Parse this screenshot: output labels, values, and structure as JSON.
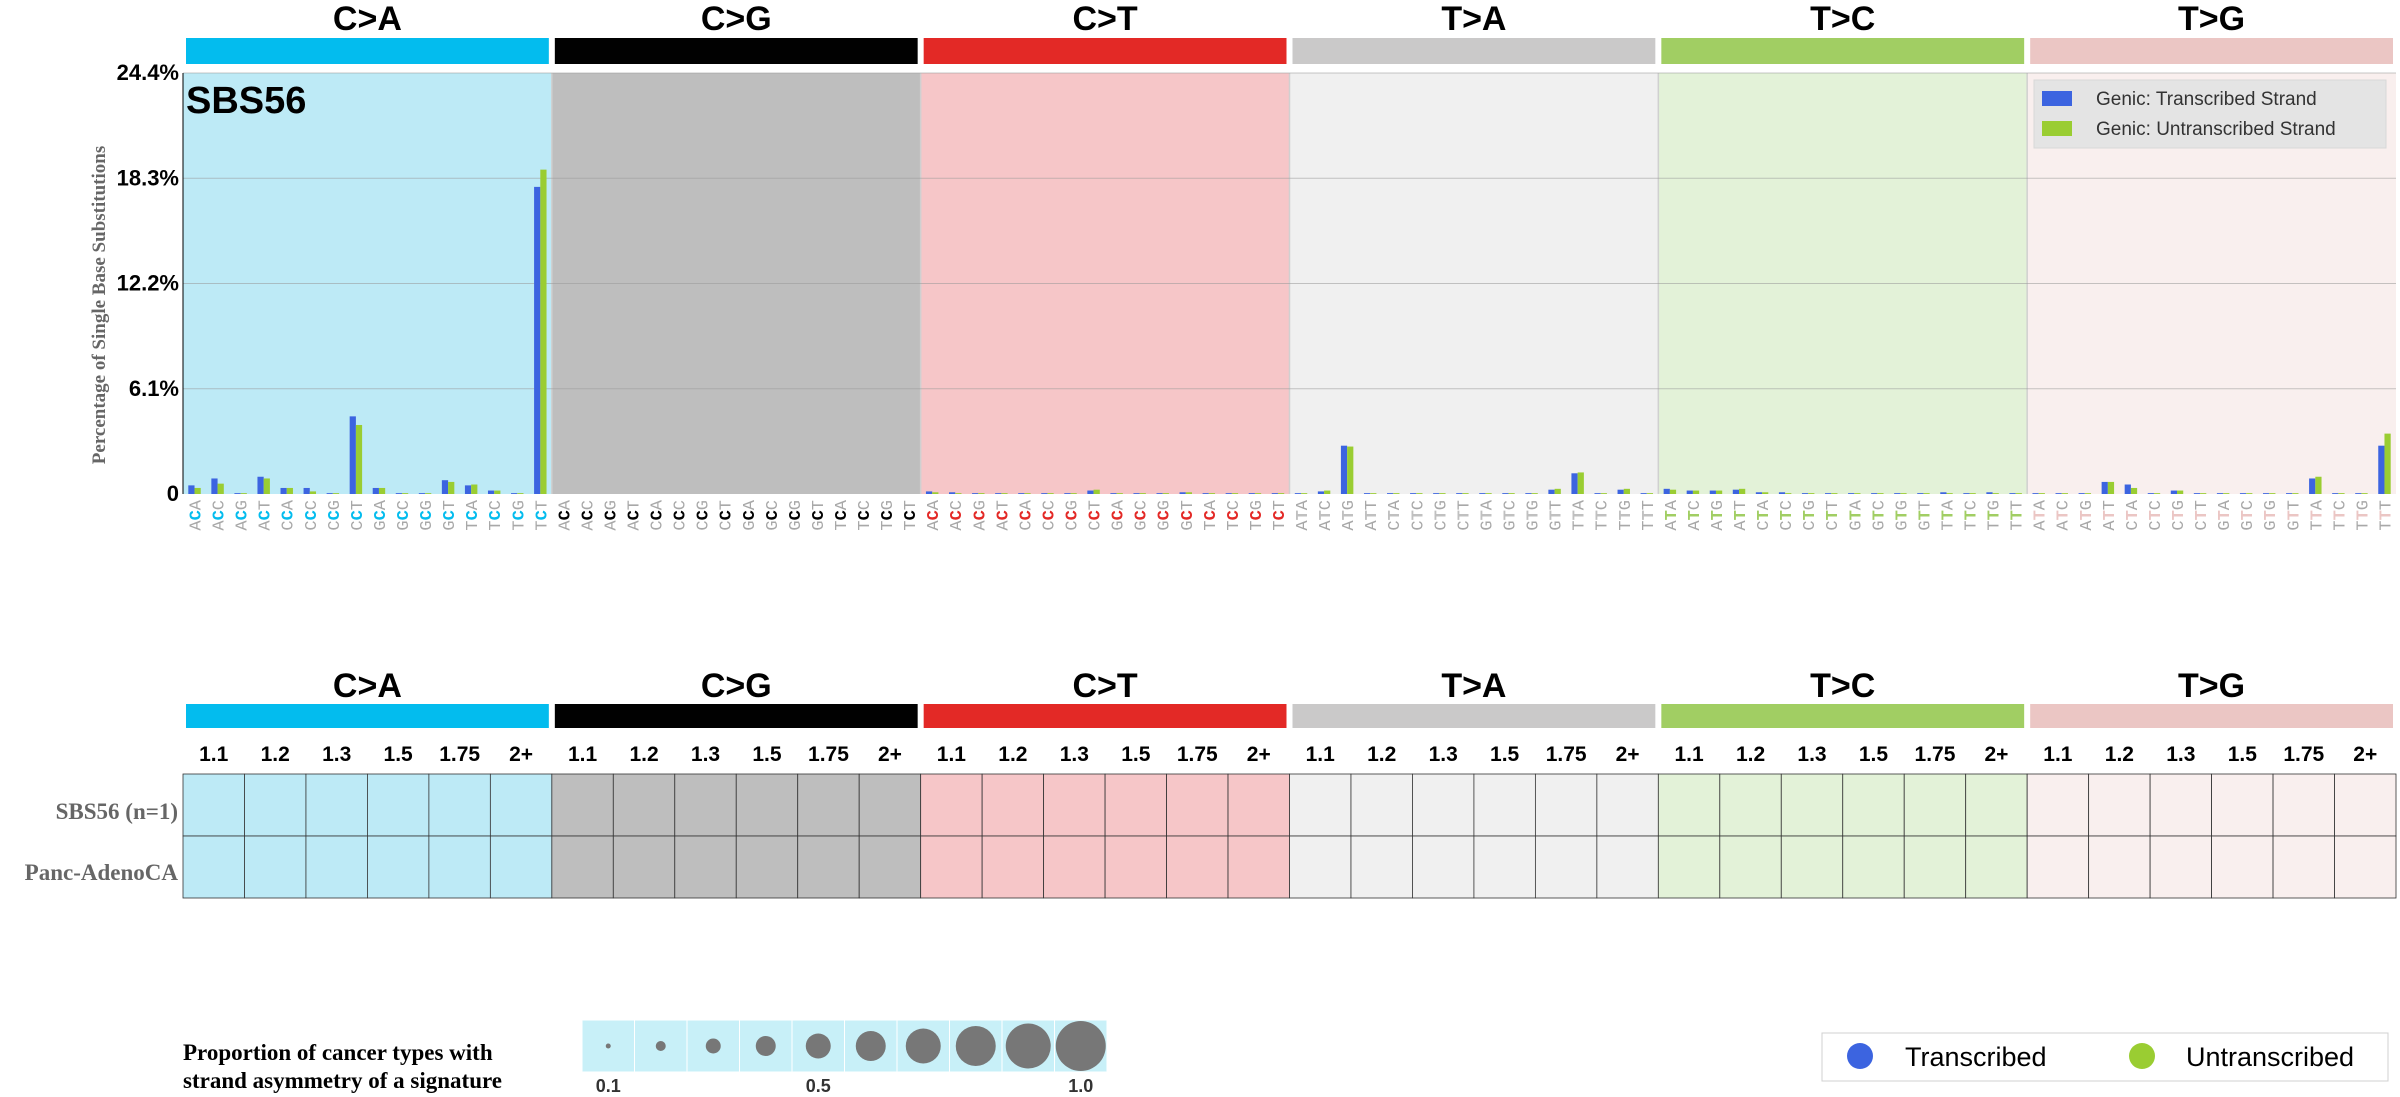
{
  "chart_data": [
    {
      "type": "bar",
      "title": "SBS56",
      "ylabel": "Percentage of Single Base Substitutions",
      "ylim": [
        0,
        24.4
      ],
      "yticks": [
        "0",
        "6.1%",
        "12.2%",
        "18.3%",
        "24.4%"
      ],
      "ytick_values": [
        0,
        6.1,
        12.2,
        18.3,
        24.4
      ],
      "grid": true,
      "legend_position": "top-right",
      "groups": [
        {
          "label": "C>A",
          "color": "#03bcee",
          "bg": "#bdeaf6",
          "mid": "C"
        },
        {
          "label": "C>G",
          "color": "#010101",
          "bg": "#bebebe",
          "mid": "C"
        },
        {
          "label": "C>T",
          "color": "#e32926",
          "bg": "#f6c6c8",
          "mid": "C"
        },
        {
          "label": "T>A",
          "color": "#cac9c9",
          "bg": "#f0f0f0",
          "mid": "T"
        },
        {
          "label": "T>C",
          "color": "#a1ce63",
          "bg": "#e3f2d8",
          "mid": "T"
        },
        {
          "label": "T>G",
          "color": "#ebc6c4",
          "bg": "#f9efee",
          "mid": "T"
        }
      ],
      "mid_colors": {
        "C>A": "#03bcee",
        "C>G": "#010101",
        "C>T": "#e32926",
        "T>A": "#c0c0c0",
        "T>C": "#a1ce63",
        "T>G": "#ebc6c4"
      },
      "categories": [
        "ACA",
        "ACC",
        "ACG",
        "ACT",
        "CCA",
        "CCC",
        "CCG",
        "CCT",
        "GCA",
        "GCC",
        "GCG",
        "GCT",
        "TCA",
        "TCC",
        "TCG",
        "TCT",
        "ACA",
        "ACC",
        "ACG",
        "ACT",
        "CCA",
        "CCC",
        "CCG",
        "CCT",
        "GCA",
        "GCC",
        "GCG",
        "GCT",
        "TCA",
        "TCC",
        "TCG",
        "TCT",
        "ACA",
        "ACC",
        "ACG",
        "ACT",
        "CCA",
        "CCC",
        "CCG",
        "CCT",
        "GCA",
        "GCC",
        "GCG",
        "GCT",
        "TCA",
        "TCC",
        "TCG",
        "TCT",
        "ATA",
        "ATC",
        "ATG",
        "ATT",
        "CTA",
        "CTC",
        "CTG",
        "CTT",
        "GTA",
        "GTC",
        "GTG",
        "GTT",
        "TTA",
        "TTC",
        "TTG",
        "TTT",
        "ATA",
        "ATC",
        "ATG",
        "ATT",
        "CTA",
        "CTC",
        "CTG",
        "CTT",
        "GTA",
        "GTC",
        "GTG",
        "GTT",
        "TTA",
        "TTC",
        "TTG",
        "TTT",
        "ATA",
        "ATC",
        "ATG",
        "ATT",
        "CTA",
        "CTC",
        "CTG",
        "CTT",
        "GTA",
        "GTC",
        "GTG",
        "GTT",
        "TTA",
        "TTC",
        "TTG",
        "TTT"
      ],
      "series": [
        {
          "name": "Genic: Transcribed Strand",
          "color": "#3c64e0",
          "values": [
            0.5,
            0.9,
            0.05,
            1.0,
            0.35,
            0.35,
            0.05,
            4.5,
            0.35,
            0.05,
            0.05,
            0.8,
            0.5,
            0.2,
            0.05,
            17.8,
            0,
            0,
            0,
            0,
            0,
            0,
            0,
            0,
            0,
            0,
            0,
            0,
            0,
            0,
            0,
            0,
            0.15,
            0.1,
            0.05,
            0.05,
            0.05,
            0.05,
            0.05,
            0.2,
            0.05,
            0.05,
            0.05,
            0.1,
            0.05,
            0.05,
            0.05,
            0.05,
            0.05,
            0.15,
            2.8,
            0.05,
            0.05,
            0.05,
            0.05,
            0.05,
            0.05,
            0.05,
            0.05,
            0.25,
            1.2,
            0.05,
            0.25,
            0.05,
            0.3,
            0.2,
            0.2,
            0.25,
            0.1,
            0.1,
            0.05,
            0.05,
            0.05,
            0.05,
            0.05,
            0.05,
            0.1,
            0.05,
            0.1,
            0.05,
            0.05,
            0.05,
            0.05,
            0.7,
            0.55,
            0.05,
            0.2,
            0.05,
            0.05,
            0.05,
            0.05,
            0.05,
            0.9,
            0.05,
            0.05,
            2.8
          ]
        },
        {
          "name": "Genic: Untranscribed Strand",
          "color": "#9acd32",
          "values": [
            0.35,
            0.6,
            0.05,
            0.9,
            0.35,
            0.15,
            0.05,
            4.0,
            0.35,
            0.05,
            0.05,
            0.7,
            0.55,
            0.2,
            0.05,
            18.8,
            0,
            0,
            0,
            0,
            0,
            0,
            0,
            0,
            0,
            0,
            0,
            0,
            0,
            0,
            0,
            0,
            0.1,
            0.05,
            0.05,
            0.05,
            0.05,
            0.05,
            0.05,
            0.25,
            0.05,
            0.05,
            0.05,
            0.1,
            0.05,
            0.05,
            0.05,
            0.05,
            0.05,
            0.2,
            2.75,
            0.05,
            0.05,
            0.05,
            0.05,
            0.05,
            0.05,
            0.05,
            0.05,
            0.3,
            1.25,
            0.05,
            0.3,
            0.05,
            0.25,
            0.2,
            0.2,
            0.3,
            0.1,
            0.05,
            0.05,
            0.05,
            0.05,
            0.05,
            0.05,
            0.05,
            0.05,
            0.05,
            0.05,
            0.05,
            0.05,
            0.05,
            0.05,
            0.7,
            0.35,
            0.05,
            0.2,
            0.05,
            0.05,
            0.05,
            0.05,
            0.05,
            1.0,
            0.05,
            0.05,
            3.5
          ]
        }
      ]
    },
    {
      "type": "heatmap",
      "groups": [
        "C>A",
        "C>G",
        "C>T",
        "T>A",
        "T>C",
        "T>G"
      ],
      "columns": [
        "1.1",
        "1.2",
        "1.3",
        "1.5",
        "1.75",
        "2+"
      ],
      "rows": [
        "SBS56 (n=1)",
        "Panc-AdenoCA"
      ],
      "values": []
    },
    {
      "type": "scatter",
      "title": "Proportion of cancer types with strand asymmetry of a signature",
      "title_lines": [
        "Proportion of cancer types with",
        "strand asymmetry of a signature"
      ],
      "x": [
        0.1,
        0.2,
        0.3,
        0.4,
        0.5,
        0.6,
        0.7,
        0.8,
        0.9,
        1.0
      ],
      "tick_labels": [
        "0.1",
        "0.5",
        "1.0"
      ],
      "tick_values": [
        0.1,
        0.5,
        1.0
      ],
      "marker_color": "#777777",
      "bg": "#c8f0f8"
    }
  ],
  "legend_bottom": {
    "items": [
      {
        "label": "Transcribed",
        "color": "#3c64e0"
      },
      {
        "label": "Untranscribed",
        "color": "#9acd32"
      }
    ]
  }
}
